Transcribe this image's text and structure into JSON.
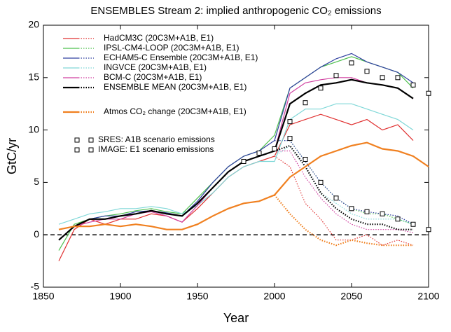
{
  "chart_data": {
    "type": "line",
    "title": "ENSEMBLES Stream 2: implied anthropogenic CO₂ emissions",
    "xlabel": "Year",
    "ylabel": "GtC/yr",
    "xlim": [
      1850,
      2100
    ],
    "ylim": [
      -5,
      20
    ],
    "xticks": [
      1850,
      1900,
      1950,
      2000,
      2050,
      2100
    ],
    "yticks": [
      -5,
      0,
      5,
      10,
      15,
      20
    ],
    "x": [
      1860,
      1870,
      1880,
      1890,
      1900,
      1910,
      1920,
      1930,
      1940,
      1950,
      1960,
      1970,
      1980,
      1990,
      2000,
      2010,
      2020,
      2030,
      2040,
      2050,
      2060,
      2070,
      2080,
      2090,
      2100
    ],
    "x_e1": [
      2000,
      2010,
      2020,
      2030,
      2040,
      2050,
      2060,
      2070,
      2080,
      2090,
      2100
    ],
    "series": [
      {
        "name": "HadCM3C (20C3M+A1B, E1)",
        "color": "#e03030",
        "values": [
          -2.5,
          0.5,
          1.5,
          1.0,
          1.5,
          1.5,
          2.0,
          1.8,
          1.2,
          2.5,
          4.0,
          5.5,
          6.5,
          7.0,
          7.5,
          10.5,
          11.0,
          11.5,
          11.0,
          10.5,
          11.0,
          10.0,
          10.5,
          9.0,
          null
        ],
        "e1_values": [
          7.5,
          6.5,
          3.0,
          1.5,
          -0.5,
          -0.5,
          0,
          -1.0,
          -0.5,
          -1.0,
          null
        ]
      },
      {
        "name": "IPSL-CM4-LOOP (20C3M+A1B, E1)",
        "color": "#4ec04e",
        "values": [
          -1.5,
          1.0,
          1.5,
          1.8,
          2.0,
          2.3,
          2.5,
          2.2,
          2.0,
          3.5,
          5.0,
          6.5,
          7.5,
          8.0,
          9.5,
          14.0,
          15.0,
          16.0,
          16.5,
          17.0,
          16.5,
          16.0,
          15.5,
          14.0,
          null
        ],
        "e1_values": [
          9.0,
          9.0,
          7.0,
          5.0,
          3.5,
          2.5,
          2.0,
          2.0,
          1.5,
          1.0,
          null
        ]
      },
      {
        "name": "ECHAM5-C Ensemble (20C3M+A1B, E1)",
        "color": "#3040a0",
        "values": [
          -0.5,
          0.8,
          1.5,
          1.8,
          1.8,
          2.2,
          2.3,
          2.1,
          1.8,
          3.2,
          5.0,
          6.5,
          7.5,
          8.0,
          9.0,
          14.0,
          15.0,
          16.0,
          16.8,
          17.3,
          16.5,
          16.0,
          15.5,
          14.5,
          null
        ],
        "e1_values": [
          9.0,
          9.0,
          7.0,
          5.0,
          3.5,
          2.5,
          2.2,
          2.0,
          1.8,
          1.0,
          null
        ]
      },
      {
        "name": "INGVCE (20C3M+A1B, E1)",
        "color": "#80d8d8",
        "values": [
          1.0,
          1.5,
          2.0,
          2.2,
          2.5,
          2.5,
          2.7,
          2.5,
          2.0,
          2.8,
          4.0,
          5.5,
          6.5,
          7.0,
          7.0,
          11.0,
          12.0,
          12.0,
          12.5,
          12.5,
          12.0,
          11.5,
          11.0,
          10.0,
          null
        ],
        "e1_values": [
          7.5,
          8.5,
          6.5,
          4.0,
          3.0,
          2.0,
          1.5,
          1.5,
          1.5,
          1.0,
          null
        ]
      },
      {
        "name": "BCM-C (20C3M+A1B, E1)",
        "color": "#d040a0",
        "values": [
          0.5,
          0.8,
          1.2,
          1.5,
          1.5,
          2.0,
          2.2,
          1.8,
          1.2,
          2.8,
          4.5,
          6.0,
          7.0,
          7.5,
          8.0,
          13.5,
          14.5,
          14.8,
          15.0,
          15.0,
          14.5,
          14.3,
          14.0,
          13.0,
          null
        ],
        "e1_values": [
          8.0,
          8.0,
          5.5,
          3.5,
          2.0,
          1.0,
          0.5,
          0.5,
          0.5,
          0.2,
          null
        ]
      },
      {
        "name": "ENSEMBLE MEAN (20C3M+A1B, E1)",
        "color": "#000000",
        "width": 2.2,
        "values": [
          -0.5,
          0.8,
          1.5,
          1.5,
          1.8,
          2.0,
          2.3,
          2.0,
          1.8,
          3.0,
          4.5,
          6.0,
          7.0,
          7.5,
          8.0,
          12.5,
          13.5,
          14.3,
          14.5,
          14.8,
          14.5,
          14.3,
          14.0,
          13.0,
          null
        ],
        "e1_values": [
          8.0,
          8.5,
          6.5,
          4.0,
          2.5,
          1.5,
          1.0,
          1.0,
          0.5,
          0.5,
          null
        ]
      },
      {
        "name": "Atmos CO₂ change (20C3M+A1B, E1)",
        "color": "#f08020",
        "width": 2.2,
        "values": [
          0.5,
          0.8,
          0.8,
          1.0,
          0.8,
          1.0,
          0.8,
          0.5,
          0.5,
          1.0,
          1.8,
          2.5,
          3.0,
          3.2,
          3.8,
          5.5,
          6.5,
          7.5,
          8.0,
          8.5,
          8.8,
          8.2,
          8.0,
          7.5,
          6.5
        ],
        "e1_values": [
          3.8,
          2.0,
          0.5,
          -0.5,
          -1.0,
          -0.5,
          -0.8,
          -1.0,
          -1.0,
          -1.0,
          null
        ]
      }
    ],
    "markers": [
      {
        "name": "SRES: A1B scenario emissions",
        "x": [
          1980,
          1990,
          2000,
          2010,
          2020,
          2030,
          2040,
          2050,
          2060,
          2070,
          2080,
          2090,
          2100
        ],
        "values": [
          7.0,
          7.8,
          8.2,
          10.8,
          12.6,
          14.0,
          15.2,
          16.4,
          15.6,
          15.0,
          15.0,
          14.3,
          13.5
        ]
      },
      {
        "name": "IMAGE: E1 scenario emissions",
        "x": [
          2000,
          2010,
          2020,
          2030,
          2040,
          2050,
          2060,
          2070,
          2080,
          2090,
          2100
        ],
        "values": [
          8.2,
          9.2,
          7.2,
          5.0,
          3.5,
          2.5,
          2.2,
          2.0,
          1.5,
          1.0,
          0.5
        ]
      }
    ],
    "zero_line": 0
  }
}
